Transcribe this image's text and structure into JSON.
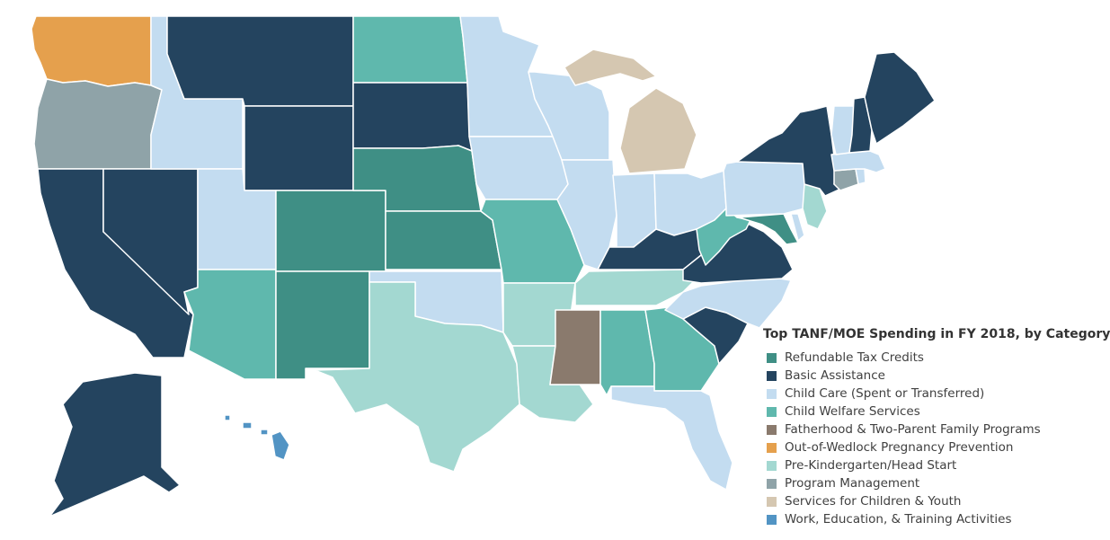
{
  "legend": {
    "title": "Top TANF/MOE Spending in FY 2018, by Category",
    "items": [
      {
        "label": "Refundable Tax Credits",
        "color": "#3f8f85"
      },
      {
        "label": "Basic Assistance",
        "color": "#24445f"
      },
      {
        "label": "Child Care (Spent or Transferred)",
        "color": "#c3dcf0"
      },
      {
        "label": "Child Welfare Services",
        "color": "#5fb8ad"
      },
      {
        "label": "Fatherhood & Two-Parent Family Programs",
        "color": "#8a7a6d"
      },
      {
        "label": "Out-of-Wedlock Pregnancy Prevention",
        "color": "#e5a04d"
      },
      {
        "label": "Pre-Kindergarten/Head Start",
        "color": "#a3d8d1"
      },
      {
        "label": "Program Management",
        "color": "#8fa3a8"
      },
      {
        "label": "Services for Children & Youth",
        "color": "#d5c7b1"
      },
      {
        "label": "Work, Education, & Training Activities",
        "color": "#5294c4"
      }
    ]
  },
  "states": [
    {
      "abbr": "WA",
      "category": "Out-of-Wedlock Pregnancy Prevention"
    },
    {
      "abbr": "OR",
      "category": "Program Management"
    },
    {
      "abbr": "CA",
      "category": "Basic Assistance"
    },
    {
      "abbr": "NV",
      "category": "Basic Assistance"
    },
    {
      "abbr": "ID",
      "category": "Child Care (Spent or Transferred)"
    },
    {
      "abbr": "MT",
      "category": "Basic Assistance"
    },
    {
      "abbr": "WY",
      "category": "Basic Assistance"
    },
    {
      "abbr": "UT",
      "category": "Child Care (Spent or Transferred)"
    },
    {
      "abbr": "AZ",
      "category": "Child Welfare Services"
    },
    {
      "abbr": "CO",
      "category": "Refundable Tax Credits"
    },
    {
      "abbr": "NM",
      "category": "Refundable Tax Credits"
    },
    {
      "abbr": "ND",
      "category": "Child Welfare Services"
    },
    {
      "abbr": "SD",
      "category": "Basic Assistance"
    },
    {
      "abbr": "NE",
      "category": "Refundable Tax Credits"
    },
    {
      "abbr": "KS",
      "category": "Refundable Tax Credits"
    },
    {
      "abbr": "OK",
      "category": "Child Care (Spent or Transferred)"
    },
    {
      "abbr": "TX",
      "category": "Pre-Kindergarten/Head Start"
    },
    {
      "abbr": "MN",
      "category": "Child Care (Spent or Transferred)"
    },
    {
      "abbr": "IA",
      "category": "Child Care (Spent or Transferred)"
    },
    {
      "abbr": "MO",
      "category": "Child Welfare Services"
    },
    {
      "abbr": "AR",
      "category": "Pre-Kindergarten/Head Start"
    },
    {
      "abbr": "LA",
      "category": "Pre-Kindergarten/Head Start"
    },
    {
      "abbr": "WI",
      "category": "Child Care (Spent or Transferred)"
    },
    {
      "abbr": "IL",
      "category": "Child Care (Spent or Transferred)"
    },
    {
      "abbr": "MI",
      "category": "Services for Children & Youth"
    },
    {
      "abbr": "IN",
      "category": "Child Care (Spent or Transferred)"
    },
    {
      "abbr": "OH",
      "category": "Child Care (Spent or Transferred)"
    },
    {
      "abbr": "KY",
      "category": "Basic Assistance"
    },
    {
      "abbr": "TN",
      "category": "Pre-Kindergarten/Head Start"
    },
    {
      "abbr": "MS",
      "category": "Fatherhood & Two-Parent Family Programs"
    },
    {
      "abbr": "AL",
      "category": "Child Welfare Services"
    },
    {
      "abbr": "GA",
      "category": "Child Welfare Services"
    },
    {
      "abbr": "FL",
      "category": "Child Care (Spent or Transferred)"
    },
    {
      "abbr": "SC",
      "category": "Basic Assistance"
    },
    {
      "abbr": "NC",
      "category": "Child Care (Spent or Transferred)"
    },
    {
      "abbr": "VA",
      "category": "Basic Assistance"
    },
    {
      "abbr": "WV",
      "category": "Child Welfare Services"
    },
    {
      "abbr": "MD",
      "category": "Refundable Tax Credits"
    },
    {
      "abbr": "DE",
      "category": "Child Care (Spent or Transferred)"
    },
    {
      "abbr": "PA",
      "category": "Child Care (Spent or Transferred)"
    },
    {
      "abbr": "NJ",
      "category": "Pre-Kindergarten/Head Start"
    },
    {
      "abbr": "NY",
      "category": "Basic Assistance"
    },
    {
      "abbr": "CT",
      "category": "Program Management"
    },
    {
      "abbr": "RI",
      "category": "Child Care (Spent or Transferred)"
    },
    {
      "abbr": "MA",
      "category": "Child Care (Spent or Transferred)"
    },
    {
      "abbr": "VT",
      "category": "Child Care (Spent or Transferred)"
    },
    {
      "abbr": "NH",
      "category": "Basic Assistance"
    },
    {
      "abbr": "ME",
      "category": "Basic Assistance"
    },
    {
      "abbr": "AK",
      "category": "Basic Assistance"
    },
    {
      "abbr": "HI",
      "category": "Work, Education, & Training Activities"
    }
  ]
}
